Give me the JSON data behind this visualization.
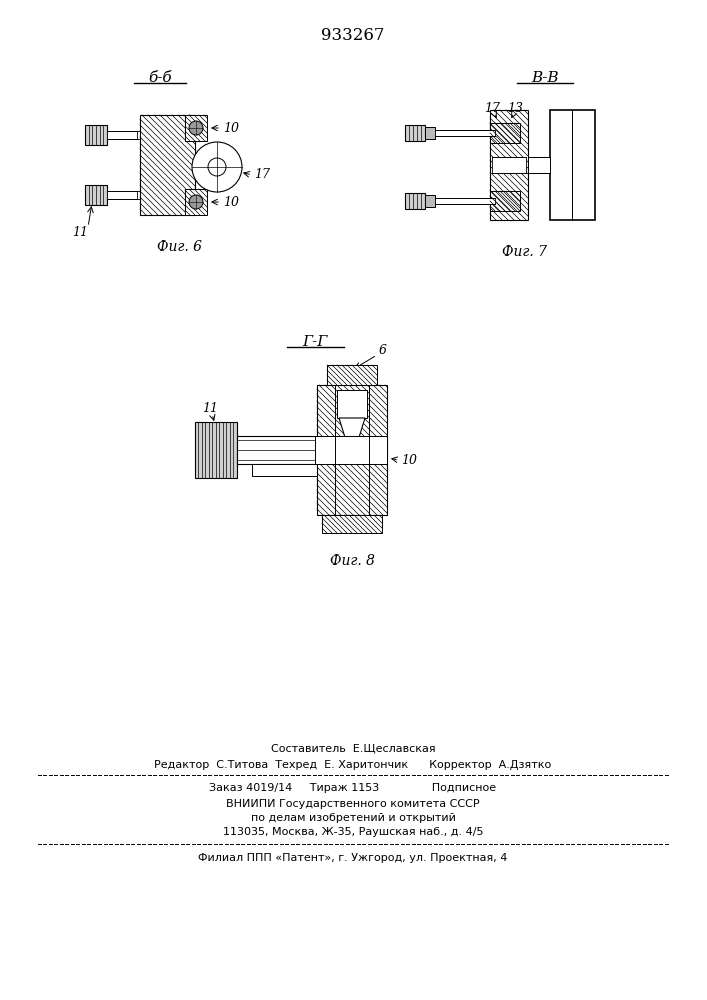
{
  "patent_number": "933267",
  "background_color": "#ffffff",
  "line_color": "#000000",
  "fig6_label": "Фиг. 6",
  "fig7_label": "Фиг. 7",
  "fig8_label": "Фиг. 8",
  "section_bb": "б-б",
  "section_vv": "В-В",
  "section_gg": "Г-Г",
  "label_10a": "10",
  "label_10b": "10",
  "label_11a": "11",
  "label_17a": "17",
  "label_17b": "17",
  "label_13": "13",
  "label_6": "6",
  "label_10c": "10",
  "label_11b": "11",
  "footer_line1": "Составитель  Е.Щеславская",
  "footer_line2": "Редактор  С.Титова  Техред  Е. Харитончик      Корректор  А.Дзятко",
  "footer_line3": "Заказ 4019/14     Тираж 1153               Подписное",
  "footer_line4": "ВНИИПИ Государственного комитета СССР",
  "footer_line5": "по делам изобретений и открытий",
  "footer_line6": "113035, Москва, Ж-35, Раушская наб., д. 4/5",
  "footer_line7": "Филиал ППП «Патент», г. Ужгород, ул. Проектная, 4"
}
